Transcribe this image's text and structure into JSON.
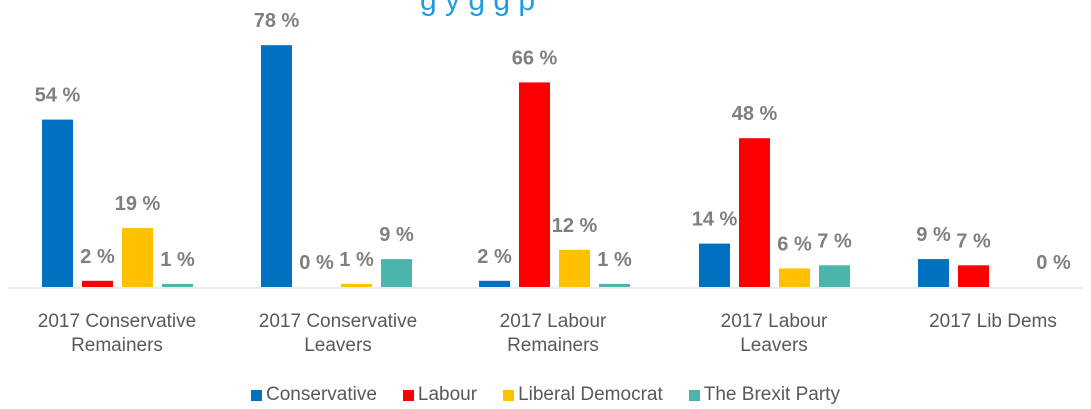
{
  "chart_data": {
    "type": "bar",
    "title": "",
    "categories": [
      [
        "2017 Conservative",
        "Remainers"
      ],
      [
        "2017 Conservative",
        "Leavers"
      ],
      [
        "2017 Labour",
        "Remainers"
      ],
      [
        "2017 Labour",
        "Leavers"
      ],
      [
        "2017 Lib Dems"
      ]
    ],
    "series": [
      {
        "name": "Conservative",
        "color": "#0070c0",
        "values": [
          54,
          78,
          2,
          14,
          9
        ]
      },
      {
        "name": "Labour",
        "color": "#ff0000",
        "values": [
          2,
          0,
          66,
          48,
          7
        ]
      },
      {
        "name": "Liberal Democrat",
        "color": "#ffc000",
        "values": [
          19,
          1,
          12,
          6,
          null
        ]
      },
      {
        "name": "The Brexit Party",
        "color": "#4bb5ab",
        "values": [
          1,
          9,
          1,
          7,
          0
        ]
      }
    ],
    "value_suffix": " %",
    "ylim": [
      0,
      80
    ],
    "legend_position": "bottom"
  },
  "partial_title": "g                y       g g  p"
}
